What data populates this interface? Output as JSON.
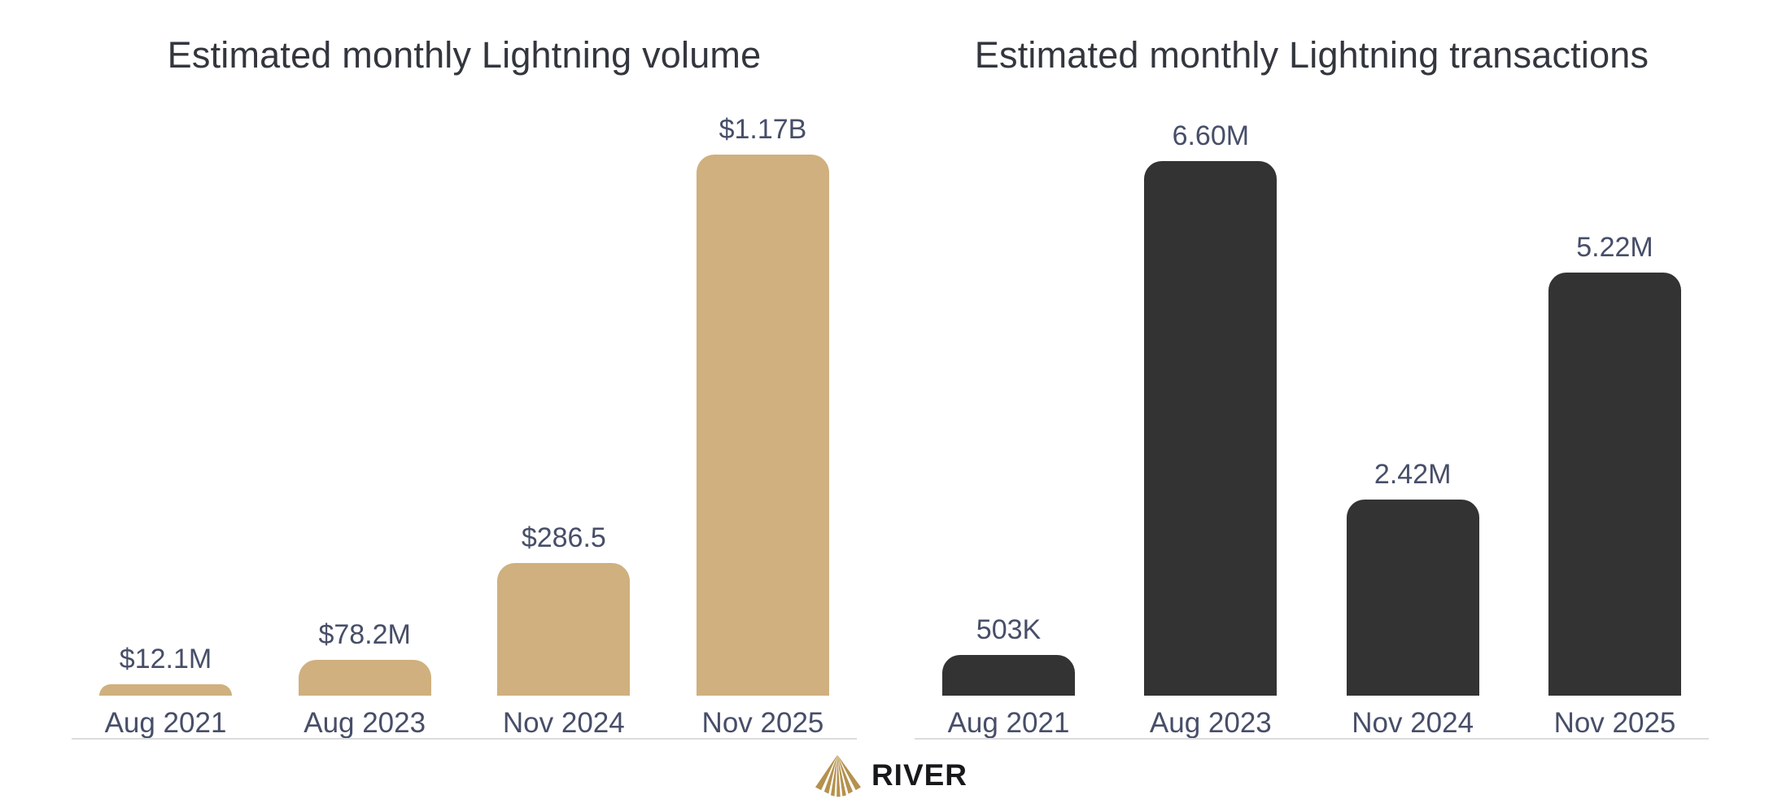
{
  "chart_data": [
    {
      "type": "bar",
      "title": "Estimated monthly Lightning volume",
      "categories": [
        "Aug 2021",
        "Aug 2023",
        "Nov 2024",
        "Nov 2025"
      ],
      "values": [
        12.1,
        78.2,
        286.5,
        1170
      ],
      "value_labels": [
        "$12.1M",
        "$78.2M",
        "$286.5",
        "$1.17B"
      ],
      "unit": "USD, millions",
      "bar_color": "#CFB07E",
      "label_color": "#474E68",
      "xlabel": "",
      "ylabel": "",
      "ylim": [
        0,
        1170
      ],
      "grid": false,
      "legend": false
    },
    {
      "type": "bar",
      "title": "Estimated monthly Lightning transactions",
      "categories": [
        "Aug 2021",
        "Aug 2023",
        "Nov 2024",
        "Nov 2025"
      ],
      "values": [
        0.503,
        6.6,
        2.42,
        5.22
      ],
      "value_labels": [
        "503K",
        "6.60M",
        "2.42M",
        "5.22M"
      ],
      "unit": "transactions, millions",
      "bar_color": "#333333",
      "label_color": "#474E68",
      "xlabel": "",
      "ylabel": "",
      "ylim": [
        0,
        6.6
      ],
      "grid": false,
      "legend": false
    }
  ],
  "footer": {
    "brand": "RIVER",
    "logo_icon": "river-rays-mountain-icon",
    "logo_color": "#B5914E",
    "text_color": "#17181A"
  },
  "colors": {
    "background": "#FFFFFF",
    "title": "#33363D",
    "axis_line": "#DCDCDC",
    "gold_bar": "#CFB07E",
    "dark_bar": "#333333",
    "labels": "#474E68"
  }
}
